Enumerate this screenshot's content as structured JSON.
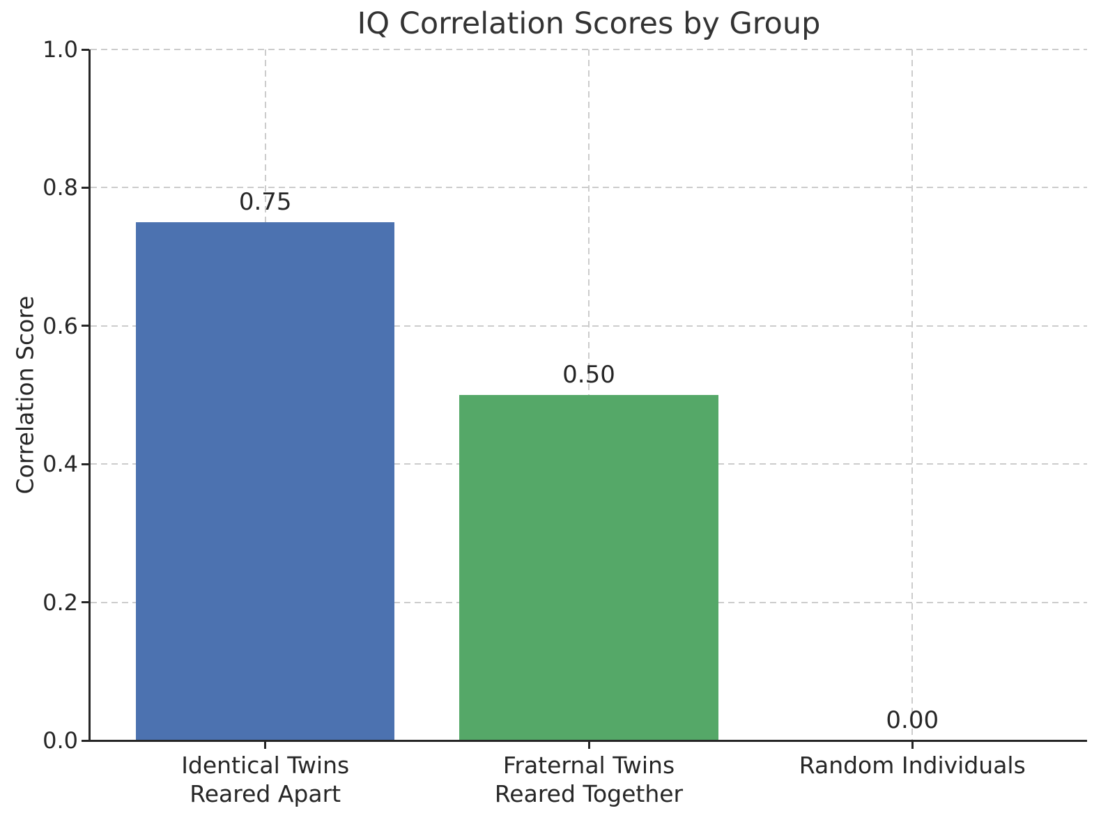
{
  "chart_data": {
    "type": "bar",
    "title": "IQ Correlation Scores by Group",
    "xlabel": "",
    "ylabel": "Correlation Score",
    "categories": [
      "Identical Twins\nReared Apart",
      "Fraternal Twins\nReared Together",
      "Random Individuals"
    ],
    "values": [
      0.75,
      0.5,
      0.0
    ],
    "value_labels": [
      "0.75",
      "0.50",
      "0.00"
    ],
    "bar_colors": [
      "#4c72b0",
      "#55a868",
      null
    ],
    "bar_width_fraction": 0.8,
    "ylim": [
      0,
      1
    ],
    "yticks": [
      "0.0",
      "0.2",
      "0.4",
      "0.6",
      "0.8",
      "1.0"
    ],
    "grid": {
      "visible": true,
      "axis": "both",
      "linestyle": "dashed",
      "color": "#cccccc"
    },
    "legend": {
      "visible": false
    }
  },
  "styles": {
    "background": "#ffffff",
    "text_color": "#262626",
    "title_color": "#333333",
    "spine_color": "#262626",
    "grid_color": "#cccccc",
    "bar_blue": "#4c72b0",
    "bar_green": "#55a868"
  }
}
